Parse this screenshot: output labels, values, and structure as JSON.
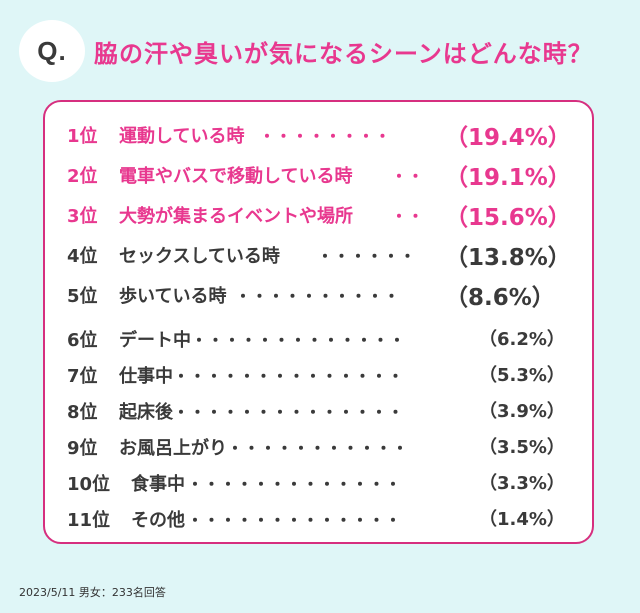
{
  "question_badge": "Q.",
  "title": "脇の汗や臭いが気になるシーンはどんな時？",
  "rankings": [
    {
      "rank": "1位",
      "label": "運動している時",
      "dots": "・・・・・・・・",
      "percent": "（19.4%）"
    },
    {
      "rank": "2位",
      "label": "電車やバスで移動している時",
      "dots": "・・",
      "percent": "（19.1%）"
    },
    {
      "rank": "3位",
      "label": "大勢が集まるイベントや場所",
      "dots": "・・",
      "percent": "（15.6%）"
    },
    {
      "rank": "4位",
      "label": "セックスしている時",
      "dots": "・・・・・・",
      "percent": "（13.8%）"
    },
    {
      "rank": "5位",
      "label": "歩いている時",
      "dots": "・・・・・・・・・・",
      "percent": "（8.6%）"
    },
    {
      "rank": "6位",
      "label": "デート中",
      "dots": "・・・・・・・・・・・・・",
      "percent": "（6.2%）"
    },
    {
      "rank": "7位",
      "label": "仕事中",
      "dots": "・・・・・・・・・・・・・・",
      "percent": "（5.3%）"
    },
    {
      "rank": "8位",
      "label": "起床後",
      "dots": "・・・・・・・・・・・・・・",
      "percent": "（3.9%）"
    },
    {
      "rank": "9位",
      "label": "お風呂上がり",
      "dots": "・・・・・・・・・・・",
      "percent": "（3.5%）"
    },
    {
      "rank": "10位",
      "label": "食事中",
      "dots": "・・・・・・・・・・・・・",
      "percent": "（3.3%）"
    },
    {
      "rank": "11位",
      "label": "その他",
      "dots": "・・・・・・・・・・・・・",
      "percent": "（1.4%）"
    }
  ],
  "footer": "2023/5/11 男女：233名回答",
  "colors": {
    "background": "#dff6f7",
    "accent_pink": "#e8388f",
    "border_pink": "#d62f7f",
    "text_dark": "#3a3a3a"
  }
}
